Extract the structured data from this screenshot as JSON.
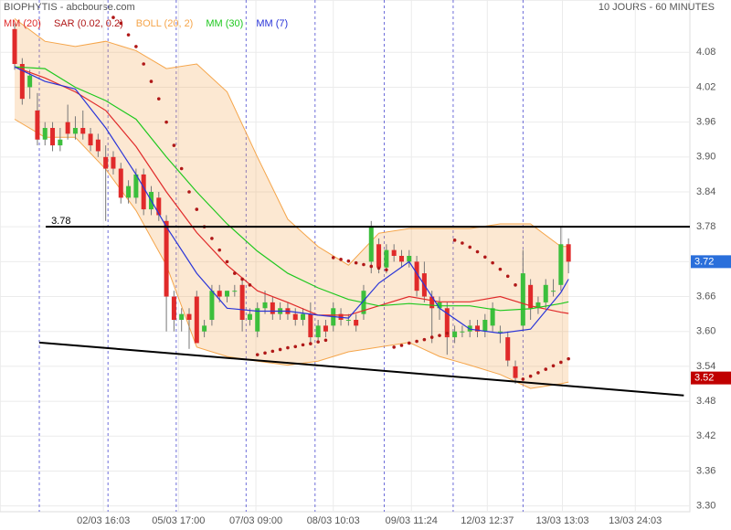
{
  "chart_data": {
    "type": "candlestick",
    "title": "BIOPHYTIS - abcbourse.com",
    "subtitle": "10 JOURS - 60 MINUTES",
    "ylim": [
      3.29,
      4.17
    ],
    "yticks": [
      {
        "value": 3.3,
        "label": "3.30"
      },
      3.36,
      3.42,
      3.48,
      3.54,
      {
        "value": 3.6,
        "label": "3.60"
      },
      3.66,
      3.72,
      3.78,
      3.84,
      {
        "value": 3.9,
        "label": "3.90"
      },
      3.96,
      4.02,
      4.08
    ],
    "xlim": [
      -1.93,
      89.0
    ],
    "xticks": [
      {
        "value": 11.7,
        "label": "02/03 16:03"
      },
      {
        "value": 21.6,
        "label": "05/03 17:00"
      },
      {
        "value": 31.8,
        "label": "07/03 09:00"
      },
      {
        "value": 42.0,
        "label": "08/03 10:03"
      },
      {
        "value": 52.3,
        "label": "09/03 11:24"
      },
      {
        "value": 62.3,
        "label": "12/03 12:37"
      },
      {
        "value": 72.2,
        "label": "13/03 13:03"
      },
      {
        "value": 81.8,
        "label": "13/03 24:03"
      }
    ],
    "grid": true,
    "day_separators": [
      3.25,
      12.3,
      21.3,
      30.5,
      39.6,
      48.7,
      57.8,
      67.0
    ],
    "up_color": "#3cbf3c",
    "down_color": "#e02a2a",
    "open": [
      4.12,
      4.06,
      4.02,
      3.98,
      3.93,
      3.95,
      3.92,
      3.96,
      3.94,
      3.95,
      3.94,
      3.93,
      3.9,
      3.9,
      3.88,
      3.83,
      3.83,
      3.87,
      3.81,
      3.83,
      3.79,
      3.66,
      3.62,
      3.63,
      3.66,
      3.6,
      3.62,
      3.67,
      3.66,
      3.67,
      3.68,
      3.62,
      3.6,
      3.64,
      3.65,
      3.63,
      3.64,
      3.63,
      3.62,
      3.63,
      3.59,
      3.61,
      3.61,
      3.63,
      3.62,
      3.62,
      3.63,
      3.72,
      3.75,
      3.71,
      3.74,
      3.73,
      3.72,
      3.72,
      3.7,
      3.66,
      3.64,
      3.64,
      3.59,
      3.6,
      3.6,
      3.61,
      3.6,
      3.61,
      3.6,
      3.59,
      3.54,
      3.61,
      3.68,
      3.64,
      3.65,
      3.67,
      3.68,
      3.75
    ],
    "high": [
      4.13,
      4.07,
      4.05,
      4.01,
      3.96,
      3.96,
      3.95,
      3.99,
      3.97,
      3.98,
      3.95,
      3.94,
      3.92,
      3.91,
      3.89,
      3.86,
      3.88,
      3.88,
      3.85,
      3.84,
      3.8,
      3.67,
      3.64,
      3.64,
      3.67,
      3.62,
      3.68,
      3.68,
      3.67,
      3.68,
      3.69,
      3.64,
      3.65,
      3.67,
      3.66,
      3.65,
      3.65,
      3.64,
      3.64,
      3.65,
      3.62,
      3.62,
      3.65,
      3.64,
      3.63,
      3.63,
      3.68,
      3.79,
      3.76,
      3.75,
      3.75,
      3.74,
      3.74,
      3.73,
      3.72,
      3.67,
      3.66,
      3.65,
      3.61,
      3.61,
      3.62,
      3.62,
      3.63,
      3.65,
      3.61,
      3.6,
      3.55,
      3.74,
      3.69,
      3.66,
      3.69,
      3.69,
      3.78,
      3.76
    ],
    "low": [
      4.05,
      3.99,
      4.0,
      3.92,
      3.92,
      3.91,
      3.91,
      3.93,
      3.93,
      3.93,
      3.91,
      3.9,
      3.79,
      3.87,
      3.82,
      3.82,
      3.82,
      3.8,
      3.8,
      3.79,
      3.6,
      3.6,
      3.6,
      3.57,
      3.58,
      3.59,
      3.61,
      3.65,
      3.65,
      3.66,
      3.6,
      3.61,
      3.59,
      3.63,
      3.62,
      3.62,
      3.62,
      3.61,
      3.61,
      3.58,
      3.58,
      3.59,
      3.6,
      3.61,
      3.61,
      3.6,
      3.62,
      3.7,
      3.7,
      3.7,
      3.72,
      3.71,
      3.71,
      3.66,
      3.65,
      3.58,
      3.62,
      3.56,
      3.58,
      3.59,
      3.59,
      3.59,
      3.59,
      3.6,
      3.58,
      3.54,
      3.51,
      3.6,
      3.62,
      3.63,
      3.64,
      3.66,
      3.67,
      3.7
    ],
    "close": [
      4.06,
      4.0,
      4.04,
      3.93,
      3.95,
      3.92,
      3.93,
      3.94,
      3.95,
      3.94,
      3.92,
      3.91,
      3.88,
      3.88,
      3.83,
      3.85,
      3.87,
      3.81,
      3.84,
      3.8,
      3.66,
      3.62,
      3.63,
      3.62,
      3.58,
      3.61,
      3.67,
      3.66,
      3.67,
      3.67,
      3.62,
      3.63,
      3.64,
      3.65,
      3.63,
      3.64,
      3.63,
      3.62,
      3.63,
      3.59,
      3.61,
      3.6,
      3.64,
      3.62,
      3.62,
      3.61,
      3.67,
      3.78,
      3.71,
      3.74,
      3.73,
      3.72,
      3.73,
      3.67,
      3.66,
      3.64,
      3.65,
      3.59,
      3.6,
      3.6,
      3.61,
      3.6,
      3.62,
      3.64,
      3.6,
      3.55,
      3.52,
      3.7,
      3.64,
      3.65,
      3.68,
      3.67,
      3.75,
      3.72
    ],
    "indicators": [
      {
        "name": "MM (20)",
        "kind": "line",
        "color": "#e02a2a",
        "x": [
          0,
          4,
          8,
          12,
          16,
          20,
          24,
          28,
          32,
          36,
          40,
          44,
          48,
          52,
          56,
          60,
          64,
          68,
          72,
          73
        ],
        "values": [
          4.055,
          4.036,
          4.012,
          3.98,
          3.918,
          3.84,
          3.77,
          3.714,
          3.67,
          3.65,
          3.628,
          3.628,
          3.644,
          3.66,
          3.651,
          3.651,
          3.66,
          3.644,
          3.633,
          3.631
        ]
      },
      {
        "name": "SAR (0.02, 0.2)",
        "kind": "dots",
        "color": "#b01818",
        "x": [
          13,
          14,
          15,
          16,
          17,
          18,
          19,
          20,
          21,
          22,
          23,
          24,
          25,
          26,
          27,
          28,
          29,
          30,
          31,
          32,
          33,
          34,
          35,
          36,
          37,
          38,
          39,
          40,
          41,
          42,
          43,
          44,
          45,
          46,
          47,
          48,
          49,
          50,
          51,
          52,
          53,
          54,
          55,
          56,
          57,
          58,
          59,
          60,
          61,
          62,
          63,
          64,
          65,
          66,
          67,
          68,
          69,
          70,
          71,
          72,
          73
        ],
        "values": [
          4.14,
          4.13,
          4.11,
          4.09,
          4.06,
          4.03,
          4.0,
          3.96,
          3.92,
          3.88,
          3.84,
          3.81,
          3.78,
          3.76,
          3.74,
          3.72,
          3.7,
          3.69,
          3.68,
          3.56,
          3.563,
          3.566,
          3.569,
          3.572,
          3.574,
          3.577,
          3.579,
          3.582,
          3.585,
          3.727,
          3.724,
          3.721,
          3.718,
          3.715,
          3.712,
          3.709,
          3.706,
          3.573,
          3.576,
          3.58,
          3.583,
          3.586,
          3.59,
          3.593,
          3.597,
          3.757,
          3.752,
          3.745,
          3.737,
          3.728,
          3.718,
          3.707,
          3.695,
          3.68,
          3.518,
          3.523,
          3.529,
          3.535,
          3.541,
          3.547,
          3.553
        ]
      },
      {
        "name": "BOLL (20, 2)",
        "kind": "band",
        "color": "#f5a54a",
        "x": [
          0,
          4,
          8,
          12,
          16,
          20,
          24,
          28,
          32,
          36,
          40,
          44,
          48,
          52,
          56,
          60,
          64,
          68,
          72,
          73
        ],
        "upper": [
          4.138,
          4.099,
          4.09,
          4.099,
          4.083,
          4.052,
          4.06,
          4.012,
          3.9,
          3.793,
          3.746,
          3.714,
          3.769,
          3.777,
          3.777,
          3.777,
          3.785,
          3.785,
          3.746,
          3.746
        ],
        "lower": [
          3.965,
          3.934,
          3.934,
          3.879,
          3.808,
          3.714,
          3.573,
          3.557,
          3.549,
          3.542,
          3.549,
          3.565,
          3.573,
          3.581,
          3.557,
          3.542,
          3.526,
          3.502,
          3.51,
          3.513
        ]
      },
      {
        "name": "MM (30)",
        "kind": "line",
        "color": "#1ec81e",
        "x": [
          0,
          4,
          8,
          12,
          16,
          20,
          24,
          28,
          32,
          36,
          40,
          44,
          48,
          52,
          56,
          60,
          64,
          68,
          72,
          73
        ],
        "values": [
          4.055,
          4.052,
          4.02,
          3.997,
          3.965,
          3.9,
          3.84,
          3.785,
          3.738,
          3.7,
          3.675,
          3.655,
          3.644,
          3.648,
          3.644,
          3.644,
          3.636,
          3.639,
          3.648,
          3.651
        ]
      },
      {
        "name": "MM (7)",
        "kind": "line",
        "color": "#2a35d8",
        "x": [
          0,
          4,
          8,
          12,
          16,
          20,
          24,
          28,
          32,
          36,
          40,
          44,
          48,
          52,
          56,
          60,
          64,
          68,
          72,
          73
        ],
        "values": [
          4.055,
          4.03,
          4.017,
          3.95,
          3.87,
          3.78,
          3.7,
          3.64,
          3.635,
          3.635,
          3.628,
          3.623,
          3.683,
          3.72,
          3.64,
          3.604,
          3.597,
          3.604,
          3.667,
          3.69
        ]
      }
    ],
    "hline": {
      "value": 3.78,
      "x_start": 4.1
    },
    "trendline": {
      "x": [
        3.25,
        88.2
      ],
      "values": [
        3.581,
        3.49
      ]
    },
    "price_tags": [
      {
        "value": 3.72,
        "color": "#2a6fdb"
      },
      {
        "value": 3.52,
        "color": "#c00000"
      }
    ]
  }
}
